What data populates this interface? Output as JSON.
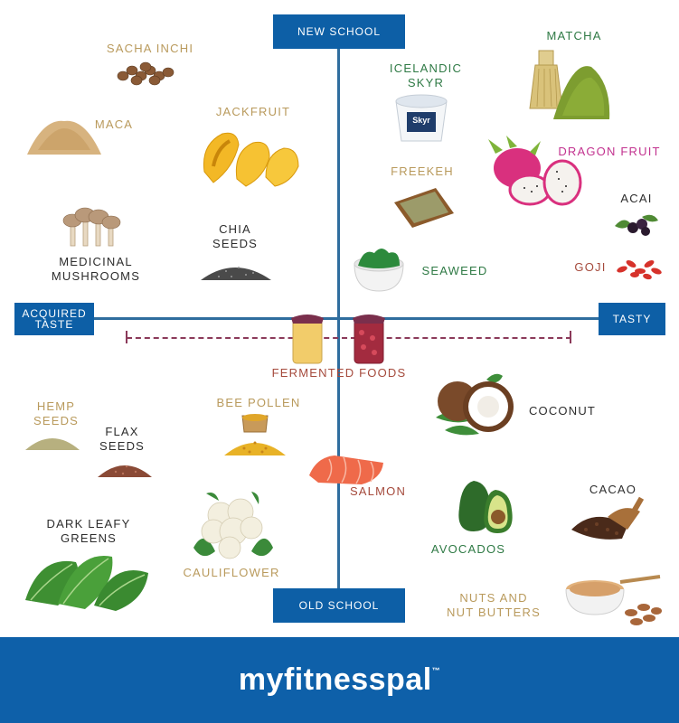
{
  "axes": {
    "top": "NEW SCHOOL",
    "bottom": "OLD SCHOOL",
    "left_line1": "ACQUIRED",
    "left_line2": "TASTE",
    "right": "TASTY"
  },
  "foods": {
    "sacha_inchi": "SACHA INCHI",
    "maca": "MACA",
    "jackfruit": "JACKFRUIT",
    "medicinal_line1": "MEDICINAL",
    "medicinal_line2": "MUSHROOMS",
    "chia_line1": "CHIA",
    "chia_line2": "SEEDS",
    "skyr_line1": "ICELANDIC",
    "skyr_line2": "SKYR",
    "matcha": "MATCHA",
    "dragon_fruit": "DRAGON FRUIT",
    "freekeh": "FREEKEH",
    "acai": "ACAI",
    "seaweed": "SEAWEED",
    "goji": "GOJI",
    "fermented": "FERMENTED FOODS",
    "hemp_line1": "HEMP",
    "hemp_line2": "SEEDS",
    "flax_line1": "FLAX",
    "flax_line2": "SEEDS",
    "bee_pollen": "BEE POLLEN",
    "coconut": "COCONUT",
    "salmon": "SALMON",
    "cacao": "CACAO",
    "dark_leafy_line1": "DARK LEAFY",
    "dark_leafy_line2": "GREENS",
    "avocados": "AVOCADOS",
    "cauliflower": "CAULIFLOWER",
    "nuts_line1": "NUTS AND",
    "nuts_line2": "NUT BUTTERS"
  },
  "skyr_lid_text": "Skyr",
  "brand": {
    "name": "myfitnesspal",
    "mark": "™"
  },
  "colors": {
    "axis": "#2f6d9e",
    "box": "#0d5fa6",
    "footer": "#0e60a9",
    "dash": "#8b3a5a"
  }
}
